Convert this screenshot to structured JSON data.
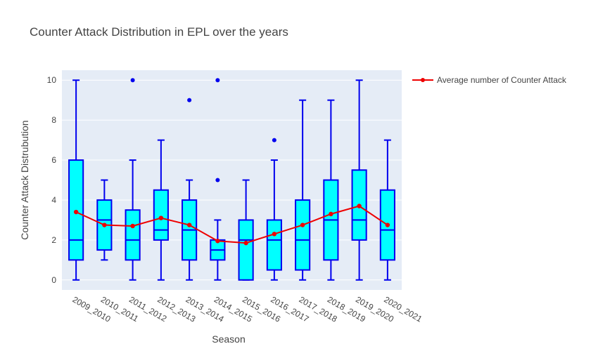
{
  "chart_data": {
    "type": "box",
    "title": "Counter Attack Distribution in EPL over the years",
    "xlabel": "Season",
    "ylabel": "Counter Attack Distrubution",
    "ylim": [
      -0.5,
      10.5
    ],
    "yticks": [
      0,
      2,
      4,
      6,
      8,
      10
    ],
    "grid": true,
    "legend_position": "top-right",
    "colors": {
      "plot_bg": "#e5ecf6",
      "grid": "#ffffff",
      "box_fill": "#00ffff",
      "box_line": "#0000ee",
      "average_line": "#ee0000"
    },
    "categories": [
      "2009_2010",
      "2010_2011",
      "2011_2012",
      "2012_2013",
      "2013_2014",
      "2014_2015",
      "2015_2016",
      "2016_2017",
      "2017_2018",
      "2018_2019",
      "2019_2020",
      "2020_2021"
    ],
    "boxes": [
      {
        "q1": 1,
        "median": 2,
        "q3": 6,
        "lower_whisker": 0,
        "upper_whisker": 10,
        "outliers": []
      },
      {
        "q1": 1.5,
        "median": 3,
        "q3": 4,
        "lower_whisker": 1,
        "upper_whisker": 5,
        "outliers": []
      },
      {
        "q1": 1,
        "median": 2,
        "q3": 3.5,
        "lower_whisker": 0,
        "upper_whisker": 6,
        "outliers": [
          10
        ]
      },
      {
        "q1": 2,
        "median": 2.5,
        "q3": 4.5,
        "lower_whisker": 0,
        "upper_whisker": 7,
        "outliers": []
      },
      {
        "q1": 1,
        "median": 2.5,
        "q3": 4,
        "lower_whisker": 0,
        "upper_whisker": 5,
        "outliers": [
          9
        ]
      },
      {
        "q1": 1,
        "median": 1.5,
        "q3": 2,
        "lower_whisker": 0,
        "upper_whisker": 3,
        "outliers": [
          5,
          10
        ]
      },
      {
        "q1": 0,
        "median": 2,
        "q3": 3,
        "lower_whisker": 0,
        "upper_whisker": 5,
        "outliers": []
      },
      {
        "q1": 0.5,
        "median": 2,
        "q3": 3,
        "lower_whisker": 0,
        "upper_whisker": 6,
        "outliers": [
          7
        ]
      },
      {
        "q1": 0.5,
        "median": 2,
        "q3": 4,
        "lower_whisker": 0,
        "upper_whisker": 9,
        "outliers": []
      },
      {
        "q1": 1,
        "median": 3,
        "q3": 5,
        "lower_whisker": 0,
        "upper_whisker": 9,
        "outliers": []
      },
      {
        "q1": 2,
        "median": 3,
        "q3": 5.5,
        "lower_whisker": 0,
        "upper_whisker": 10,
        "outliers": []
      },
      {
        "q1": 1,
        "median": 2.5,
        "q3": 4.5,
        "lower_whisker": 0,
        "upper_whisker": 7,
        "outliers": []
      }
    ],
    "average_series": {
      "name": "Average number of Counter Attack",
      "values": [
        3.4,
        2.75,
        2.7,
        3.1,
        2.75,
        1.95,
        1.85,
        2.3,
        2.75,
        3.3,
        3.7,
        2.75
      ]
    }
  }
}
